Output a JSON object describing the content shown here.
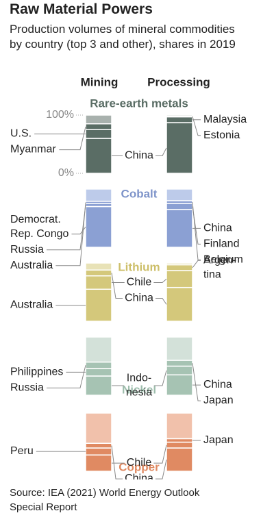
{
  "chart_data": {
    "type": "stacked-bar",
    "title": "Raw Material Powers",
    "subtitle": "Production volumes of mineral commodities by country (top 3 and other), shares in 2019",
    "columns": [
      "Mining",
      "Processing"
    ],
    "ylim": [
      0,
      100
    ],
    "yticks": [
      {
        "value": 100,
        "label": "100%"
      },
      {
        "value": 0,
        "label": "0%"
      }
    ],
    "groups": [
      {
        "name": "Rare-earth metals",
        "color": "#5a6d65",
        "other_color": "#a8b1ad",
        "name_color": "#5a6d65",
        "mining": {
          "countries": [
            "China",
            "U.S.",
            "Myanmar",
            null
          ],
          "values": [
            60,
            15,
            10,
            15
          ]
        },
        "processing": {
          "countries": [
            "China",
            "Malaysia",
            "Estonia",
            null
          ],
          "values": [
            87,
            10,
            1,
            2
          ]
        }
      },
      {
        "name": "Cobalt",
        "color": "#8ba0d3",
        "other_color": "#bdcbea",
        "name_color": "#7d93c9",
        "mining": {
          "countries": [
            "Democrat. Rep. Congo",
            "Russia",
            "Australia",
            null
          ],
          "values": [
            70,
            5,
            4,
            21
          ]
        },
        "processing": {
          "countries": [
            "China",
            "Finland",
            "Belgium",
            null
          ],
          "values": [
            65,
            10,
            5,
            20
          ]
        }
      },
      {
        "name": "Lithium",
        "color": "#d4c87b",
        "other_color": "#e8e2b7",
        "name_color": "#cdbf6a",
        "mining": {
          "countries": [
            "Australia",
            "Chile",
            "China",
            null
          ],
          "values": [
            55,
            23,
            10,
            12
          ]
        },
        "processing": {
          "countries": [
            "China",
            "Chile",
            "Argen-tina",
            null
          ],
          "values": [
            58,
            29,
            10,
            3
          ]
        }
      },
      {
        "name": "Nickel",
        "color": "#a6c3b3",
        "other_color": "#d3e1d9",
        "name_color": "#9dbdac",
        "mining": {
          "countries": [
            "Indo-nesia",
            "Philippines",
            "Russia",
            null
          ],
          "values": [
            33,
            13,
            11,
            43
          ]
        },
        "processing": {
          "countries": [
            "China",
            "Indo-nesia",
            "Japan",
            null
          ],
          "values": [
            35,
            15,
            10,
            40
          ]
        }
      },
      {
        "name": "Copper",
        "color": "#e08a62",
        "other_color": "#f1c1ab",
        "name_color": "#e08a62",
        "mining": {
          "countries": [
            "Chile",
            "Peru",
            "China",
            null
          ],
          "values": [
            28,
            12,
            8,
            52
          ]
        },
        "processing": {
          "countries": [
            "China",
            "Chile",
            "Japan",
            null
          ],
          "values": [
            40,
            10,
            6,
            44
          ]
        }
      }
    ],
    "source": "Source: IEA (2021) World Energy Outlook Special Report"
  }
}
